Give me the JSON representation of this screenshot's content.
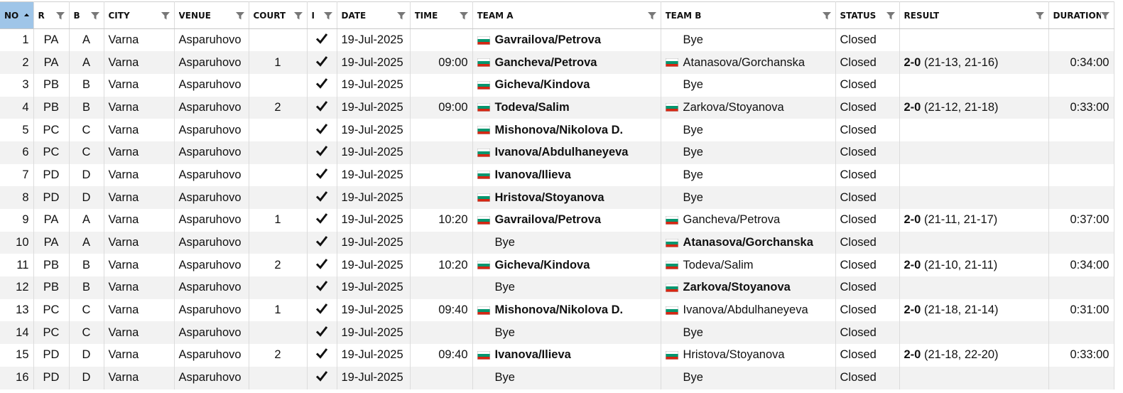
{
  "table": {
    "columns": [
      "NO",
      "R",
      "B",
      "CITY",
      "VENUE",
      "COURT",
      "I",
      "DATE",
      "TIME",
      "TEAM A",
      "TEAM B",
      "STATUS",
      "RESULT",
      "DURATION"
    ],
    "rows": [
      {
        "no": 1,
        "r": "PA",
        "b": "A",
        "city": "Varna",
        "venue": "Asparuhovo",
        "date": "19-Jul-2025",
        "team_a": {
          "name": "Gavrailova/Petrova",
          "flag": true,
          "winner": true
        },
        "team_b": {
          "name": "Bye"
        },
        "status": "Closed"
      },
      {
        "no": 2,
        "r": "PA",
        "b": "A",
        "city": "Varna",
        "venue": "Asparuhovo",
        "court": "1",
        "date": "19-Jul-2025",
        "time": "09:00",
        "team_a": {
          "name": "Gancheva/Petrova",
          "flag": true,
          "winner": true
        },
        "team_b": {
          "name": "Atanasova/Gorchanska",
          "flag": true
        },
        "status": "Closed",
        "result": {
          "score": "2-0",
          "sets": "(21-13, 21-16)"
        },
        "duration": "0:34:00"
      },
      {
        "no": 3,
        "r": "PB",
        "b": "B",
        "city": "Varna",
        "venue": "Asparuhovo",
        "date": "19-Jul-2025",
        "team_a": {
          "name": "Gicheva/Kindova",
          "flag": true,
          "winner": true
        },
        "team_b": {
          "name": "Bye"
        },
        "status": "Closed"
      },
      {
        "no": 4,
        "r": "PB",
        "b": "B",
        "city": "Varna",
        "venue": "Asparuhovo",
        "court": "2",
        "date": "19-Jul-2025",
        "time": "09:00",
        "team_a": {
          "name": "Todeva/Salim",
          "flag": true,
          "winner": true
        },
        "team_b": {
          "name": "Zarkova/Stoyanova",
          "flag": true
        },
        "status": "Closed",
        "result": {
          "score": "2-0",
          "sets": "(21-12, 21-18)"
        },
        "duration": "0:33:00"
      },
      {
        "no": 5,
        "r": "PC",
        "b": "C",
        "city": "Varna",
        "venue": "Asparuhovo",
        "date": "19-Jul-2025",
        "team_a": {
          "name": "Mishonova/Nikolova D.",
          "flag": true,
          "winner": true
        },
        "team_b": {
          "name": "Bye"
        },
        "status": "Closed"
      },
      {
        "no": 6,
        "r": "PC",
        "b": "C",
        "city": "Varna",
        "venue": "Asparuhovo",
        "date": "19-Jul-2025",
        "team_a": {
          "name": "Ivanova/Abdulhaneyeva",
          "flag": true,
          "winner": true
        },
        "team_b": {
          "name": "Bye"
        },
        "status": "Closed"
      },
      {
        "no": 7,
        "r": "PD",
        "b": "D",
        "city": "Varna",
        "venue": "Asparuhovo",
        "date": "19-Jul-2025",
        "team_a": {
          "name": "Ivanova/Ilieva",
          "flag": true,
          "winner": true
        },
        "team_b": {
          "name": "Bye"
        },
        "status": "Closed"
      },
      {
        "no": 8,
        "r": "PD",
        "b": "D",
        "city": "Varna",
        "venue": "Asparuhovo",
        "date": "19-Jul-2025",
        "team_a": {
          "name": "Hristova/Stoyanova",
          "flag": true,
          "winner": true
        },
        "team_b": {
          "name": "Bye"
        },
        "status": "Closed"
      },
      {
        "no": 9,
        "r": "PA",
        "b": "A",
        "city": "Varna",
        "venue": "Asparuhovo",
        "court": "1",
        "date": "19-Jul-2025",
        "time": "10:20",
        "team_a": {
          "name": "Gavrailova/Petrova",
          "flag": true,
          "winner": true
        },
        "team_b": {
          "name": "Gancheva/Petrova",
          "flag": true
        },
        "status": "Closed",
        "result": {
          "score": "2-0",
          "sets": "(21-11, 21-17)"
        },
        "duration": "0:37:00"
      },
      {
        "no": 10,
        "r": "PA",
        "b": "A",
        "city": "Varna",
        "venue": "Asparuhovo",
        "date": "19-Jul-2025",
        "team_a": {
          "name": "Bye"
        },
        "team_b": {
          "name": "Atanasova/Gorchanska",
          "flag": true,
          "winner": true
        },
        "status": "Closed"
      },
      {
        "no": 11,
        "r": "PB",
        "b": "B",
        "city": "Varna",
        "venue": "Asparuhovo",
        "court": "2",
        "date": "19-Jul-2025",
        "time": "10:20",
        "team_a": {
          "name": "Gicheva/Kindova",
          "flag": true,
          "winner": true
        },
        "team_b": {
          "name": "Todeva/Salim",
          "flag": true
        },
        "status": "Closed",
        "result": {
          "score": "2-0",
          "sets": "(21-10, 21-11)"
        },
        "duration": "0:34:00"
      },
      {
        "no": 12,
        "r": "PB",
        "b": "B",
        "city": "Varna",
        "venue": "Asparuhovo",
        "date": "19-Jul-2025",
        "team_a": {
          "name": "Bye"
        },
        "team_b": {
          "name": "Zarkova/Stoyanova",
          "flag": true,
          "winner": true
        },
        "status": "Closed"
      },
      {
        "no": 13,
        "r": "PC",
        "b": "C",
        "city": "Varna",
        "venue": "Asparuhovo",
        "court": "1",
        "date": "19-Jul-2025",
        "time": "09:40",
        "team_a": {
          "name": "Mishonova/Nikolova D.",
          "flag": true,
          "winner": true
        },
        "team_b": {
          "name": "Ivanova/Abdulhaneyeva",
          "flag": true
        },
        "status": "Closed",
        "result": {
          "score": "2-0",
          "sets": "(21-18, 21-14)"
        },
        "duration": "0:31:00"
      },
      {
        "no": 14,
        "r": "PC",
        "b": "C",
        "city": "Varna",
        "venue": "Asparuhovo",
        "date": "19-Jul-2025",
        "team_a": {
          "name": "Bye"
        },
        "team_b": {
          "name": "Bye"
        },
        "status": "Closed"
      },
      {
        "no": 15,
        "r": "PD",
        "b": "D",
        "city": "Varna",
        "venue": "Asparuhovo",
        "court": "2",
        "date": "19-Jul-2025",
        "time": "09:40",
        "team_a": {
          "name": "Ivanova/Ilieva",
          "flag": true,
          "winner": true
        },
        "team_b": {
          "name": "Hristova/Stoyanova",
          "flag": true
        },
        "status": "Closed",
        "result": {
          "score": "2-0",
          "sets": "(21-18, 22-20)"
        },
        "duration": "0:33:00"
      },
      {
        "no": 16,
        "r": "PD",
        "b": "D",
        "city": "Varna",
        "venue": "Asparuhovo",
        "date": "19-Jul-2025",
        "team_a": {
          "name": "Bye"
        },
        "team_b": {
          "name": "Bye"
        },
        "status": "Closed"
      }
    ]
  }
}
